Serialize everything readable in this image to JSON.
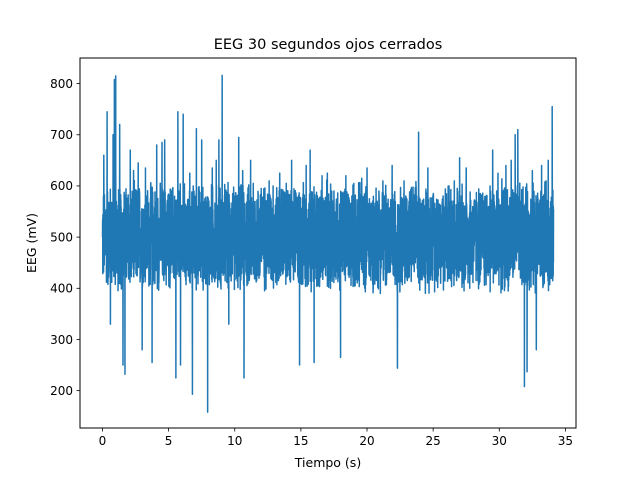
{
  "chart_data": {
    "type": "line",
    "title": "EEG 30 segundos ojos cerrados",
    "xlabel": "Tiempo (s)",
    "ylabel": "EEG (mV)",
    "xlim": [
      -1.7,
      35.8
    ],
    "ylim": [
      127,
      850
    ],
    "xticks": [
      0,
      5,
      10,
      15,
      20,
      25,
      30,
      35
    ],
    "yticks": [
      200,
      300,
      400,
      500,
      600,
      700,
      800
    ],
    "grid": false,
    "legend": "none",
    "series": [
      {
        "color": "#1f77b4",
        "x_range": [
          0,
          34.1
        ],
        "mean": 500,
        "typical_low": 390,
        "typical_high": 620,
        "x": [
          0.0,
          0.1,
          0.35,
          0.6,
          0.8,
          0.9,
          1.0,
          1.3,
          1.55,
          1.7,
          2.1,
          2.35,
          2.7,
          3.0,
          3.25,
          3.75,
          4.1,
          4.5,
          4.7,
          5.2,
          5.55,
          5.7,
          5.9,
          6.1,
          6.35,
          6.6,
          6.8,
          7.1,
          7.5,
          7.95,
          8.05,
          8.3,
          8.6,
          8.8,
          9.05,
          9.4,
          9.55,
          9.8,
          10.3,
          10.6,
          10.7,
          11.2,
          11.4,
          12.0,
          12.6,
          12.9,
          13.4,
          14.0,
          14.3,
          14.9,
          15.4,
          15.7,
          16.0,
          16.6,
          17.0,
          17.5,
          18.0,
          18.4,
          19.0,
          19.6,
          20.0,
          20.5,
          20.9,
          21.2,
          21.9,
          22.3,
          22.8,
          23.4,
          23.9,
          24.2,
          24.6,
          25.3,
          25.9,
          26.2,
          26.6,
          27.0,
          27.5,
          28.1,
          28.7,
          29.3,
          29.5,
          29.9,
          30.5,
          30.9,
          31.2,
          31.4,
          31.9,
          32.1,
          32.5,
          32.8,
          33.2,
          33.7,
          34.0,
          34.1
        ],
        "y": [
          500,
          660,
          745,
          330,
          700,
          808,
          815,
          720,
          250,
          232,
          670,
          630,
          645,
          280,
          635,
          255,
          680,
          685,
          690,
          590,
          225,
          745,
          250,
          740,
          560,
          625,
          193,
          712,
          690,
          158,
          555,
          635,
          650,
          690,
          816,
          560,
          330,
          545,
          695,
          630,
          225,
          650,
          605,
          595,
          610,
          600,
          625,
          570,
          650,
          250,
          640,
          670,
          255,
          620,
          625,
          590,
          265,
          620,
          605,
          615,
          635,
          560,
          590,
          610,
          640,
          244,
          610,
          570,
          705,
          560,
          635,
          570,
          560,
          600,
          610,
          655,
          635,
          570,
          560,
          600,
          670,
          625,
          640,
          650,
          700,
          710,
          208,
          237,
          630,
          280,
          640,
          650,
          755,
          555
        ]
      }
    ]
  }
}
